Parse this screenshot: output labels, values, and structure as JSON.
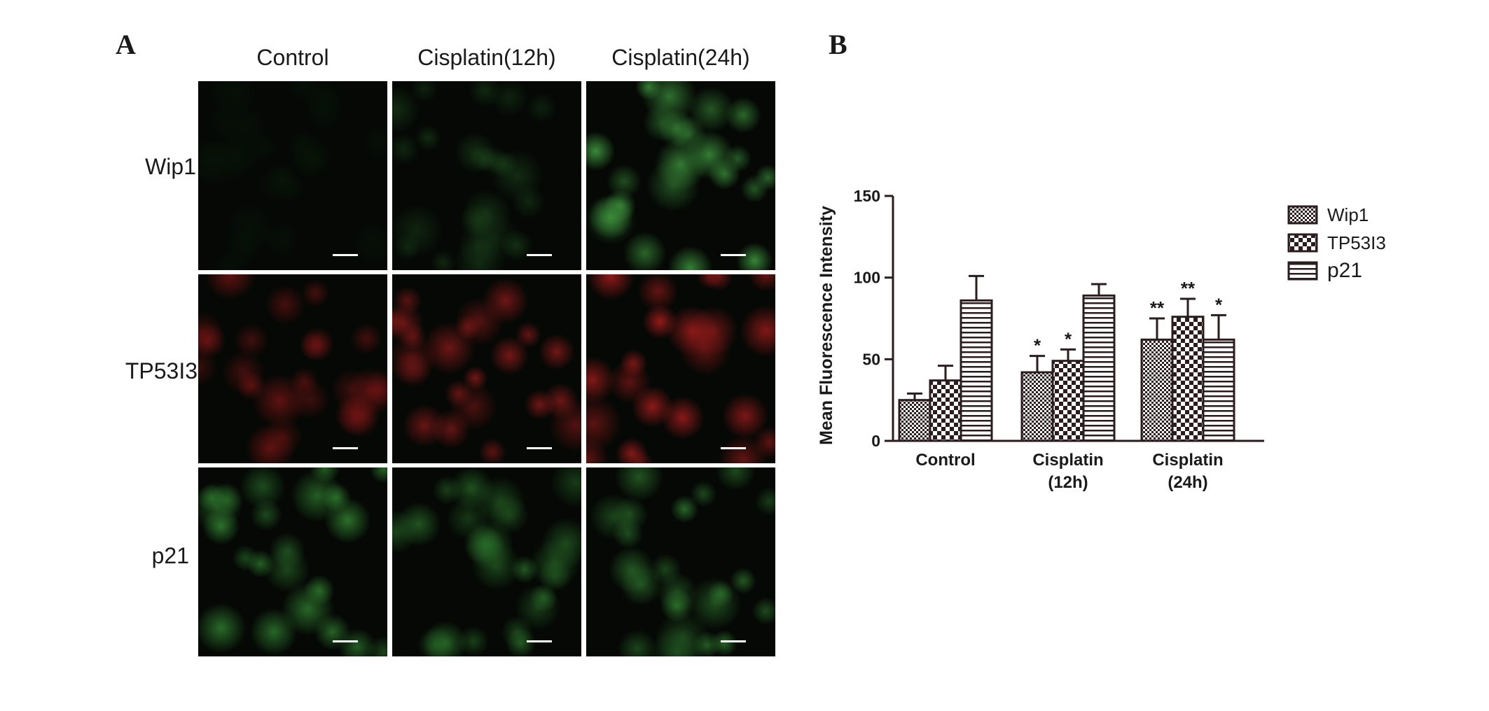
{
  "panel_a": {
    "label": "A",
    "columns": [
      "Control",
      "Cisplatin(12h)",
      "Cisplatin(24h)"
    ],
    "rows": [
      "Wip1",
      "TP53I3",
      "p21"
    ],
    "tiles": [
      {
        "row": "Wip1",
        "column": "Control",
        "stain_color": "#0a1f0a",
        "intensity": 0.12
      },
      {
        "row": "Wip1",
        "column": "Cisplatin(12h)",
        "stain_color": "#1e4a1e",
        "intensity": 0.35
      },
      {
        "row": "Wip1",
        "column": "Cisplatin(24h)",
        "stain_color": "#3a8a3a",
        "intensity": 0.75
      },
      {
        "row": "TP53I3",
        "column": "Control",
        "stain_color": "#7a1515",
        "intensity": 0.55
      },
      {
        "row": "TP53I3",
        "column": "Cisplatin(12h)",
        "stain_color": "#8a1a1a",
        "intensity": 0.65
      },
      {
        "row": "TP53I3",
        "column": "Cisplatin(24h)",
        "stain_color": "#a01c1c",
        "intensity": 0.7
      },
      {
        "row": "p21",
        "column": "Control",
        "stain_color": "#2f7a2f",
        "intensity": 0.7
      },
      {
        "row": "p21",
        "column": "Cisplatin(12h)",
        "stain_color": "#2a6e2a",
        "intensity": 0.6
      },
      {
        "row": "p21",
        "column": "Cisplatin(24h)",
        "stain_color": "#2e742e",
        "intensity": 0.65
      }
    ]
  },
  "chart_data": {
    "type": "bar",
    "panel_label": "B",
    "title": "",
    "xlabel": "",
    "ylabel": "Mean Fluorescence Intensity",
    "ylim": [
      0,
      150
    ],
    "yticks": [
      "0",
      "50",
      "100",
      "150"
    ],
    "categories": [
      [
        "Control"
      ],
      [
        "Cisplatin",
        "(12h)"
      ],
      [
        "Cisplatin",
        "(24h)"
      ]
    ],
    "legend_position": "right",
    "grid": false,
    "series": [
      {
        "name": "Wip1",
        "pattern": "fine-checker",
        "values": [
          25,
          42,
          62
        ],
        "errors": [
          4,
          10,
          13
        ],
        "significance": [
          "",
          "*",
          "**"
        ]
      },
      {
        "name": "TP53I3",
        "pattern": "coarse-checker",
        "values": [
          37,
          49,
          76
        ],
        "errors": [
          9,
          7,
          11
        ],
        "significance": [
          "",
          "*",
          "**"
        ]
      },
      {
        "name": "p21",
        "pattern": "horizontal-lines",
        "values": [
          86,
          89,
          62
        ],
        "errors": [
          15,
          7,
          15
        ],
        "significance": [
          "",
          "",
          "*"
        ]
      }
    ]
  }
}
